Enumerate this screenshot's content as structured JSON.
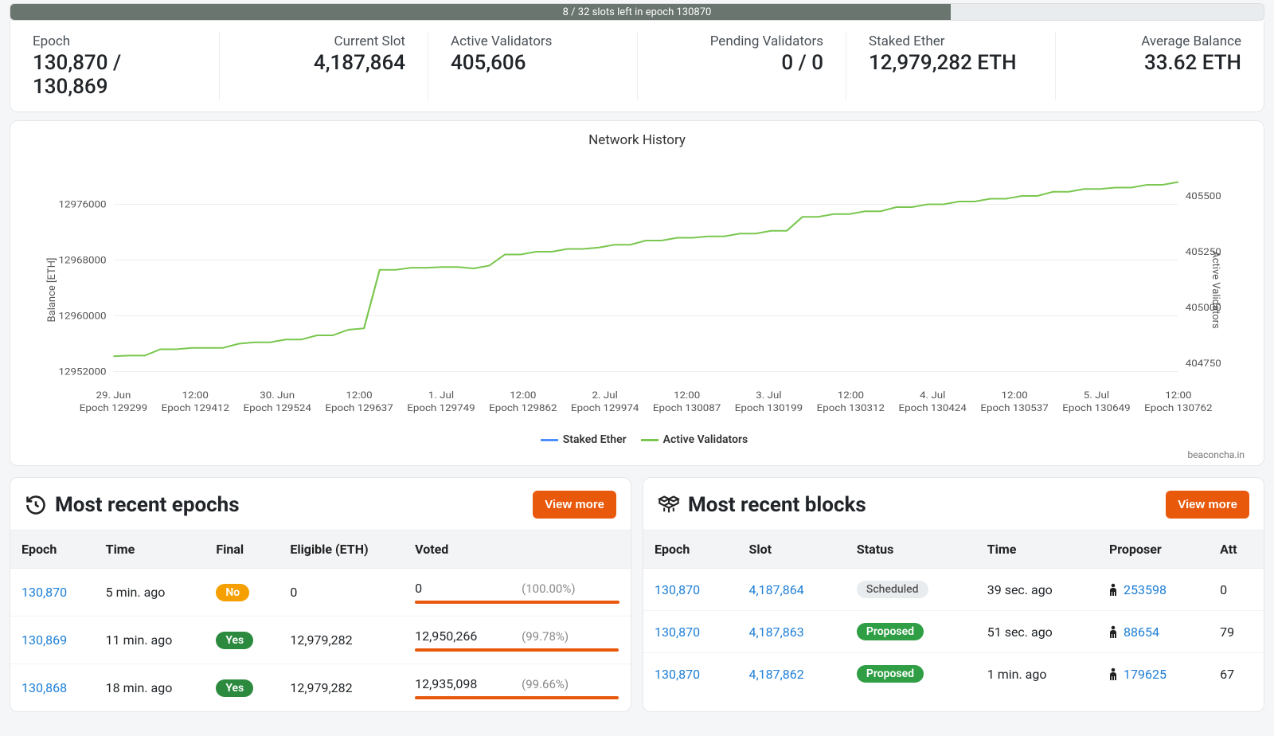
{
  "progress": {
    "text": "8 / 32 slots left in epoch 130870",
    "fill_pct": 75,
    "fill_color": "#6a756f",
    "track_color": "#e9ecef"
  },
  "stats": [
    {
      "label": "Epoch",
      "value": "130,870 / 130,869",
      "align": "left"
    },
    {
      "label": "Current Slot",
      "value": "4,187,864",
      "align": "right"
    },
    {
      "label": "Active Validators",
      "value": "405,606",
      "align": "left"
    },
    {
      "label": "Pending Validators",
      "value": "0 / 0",
      "align": "right"
    },
    {
      "label": "Staked Ether",
      "value": "12,979,282 ETH",
      "align": "left"
    },
    {
      "label": "Average Balance",
      "value": "33.62 ETH",
      "align": "right"
    }
  ],
  "chart": {
    "title": "Network History",
    "attribution": "beaconcha.in",
    "y_left_label": "Balance [ETH]",
    "y_right_label": "Active Validators",
    "y_left_ticks": [
      12952000,
      12960000,
      12968000,
      12976000
    ],
    "y_right_ticks": [
      404750,
      405000,
      405250,
      405500
    ],
    "y_left_min": 12950000,
    "y_left_max": 12982000,
    "y_right_min": 404650,
    "y_right_max": 405650,
    "x_ticks": [
      {
        "top": "29. Jun",
        "bot": "Epoch 129299"
      },
      {
        "top": "12:00",
        "bot": "Epoch 129412"
      },
      {
        "top": "30. Jun",
        "bot": "Epoch 129524"
      },
      {
        "top": "12:00",
        "bot": "Epoch 129637"
      },
      {
        "top": "1. Jul",
        "bot": "Epoch 129749"
      },
      {
        "top": "12:00",
        "bot": "Epoch 129862"
      },
      {
        "top": "2. Jul",
        "bot": "Epoch 129974"
      },
      {
        "top": "12:00",
        "bot": "Epoch 130087"
      },
      {
        "top": "3. Jul",
        "bot": "Epoch 130199"
      },
      {
        "top": "12:00",
        "bot": "Epoch 130312"
      },
      {
        "top": "4. Jul",
        "bot": "Epoch 130424"
      },
      {
        "top": "12:00",
        "bot": "Epoch 130537"
      },
      {
        "top": "5. Jul",
        "bot": "Epoch 130649"
      },
      {
        "top": "12:00",
        "bot": "Epoch 130762"
      }
    ],
    "legend": [
      {
        "label": "Staked Ether",
        "color": "#4c8dff"
      },
      {
        "label": "Active Validators",
        "color": "#7ac74f"
      }
    ],
    "series_color": "#7ac74f",
    "grid_color": "#eeeeee",
    "tick_font_size": 12,
    "series_left": [
      12954200,
      12954300,
      12954300,
      12955200,
      12955200,
      12955400,
      12955400,
      12955400,
      12956000,
      12956200,
      12956200,
      12956600,
      12956600,
      12957200,
      12957200,
      12958000,
      12958200,
      12966600,
      12966600,
      12966900,
      12966900,
      12967000,
      12967000,
      12966800,
      12967200,
      12968800,
      12968800,
      12969200,
      12969200,
      12969600,
      12969600,
      12969800,
      12970200,
      12970200,
      12970800,
      12970800,
      12971200,
      12971200,
      12971400,
      12971400,
      12971800,
      12971800,
      12972200,
      12972200,
      12974200,
      12974200,
      12974600,
      12974600,
      12975000,
      12975000,
      12975600,
      12975600,
      12976000,
      12976000,
      12976400,
      12976400,
      12976800,
      12976800,
      12977200,
      12977200,
      12977800,
      12977800,
      12978200,
      12978200,
      12978400,
      12978400,
      12978800,
      12978800,
      12979200
    ]
  },
  "epochs_card": {
    "title": "Most recent epochs",
    "button": "View more",
    "columns": [
      "Epoch",
      "Time",
      "Final",
      "Eligible (ETH)",
      "Voted"
    ],
    "rows": [
      {
        "epoch": "130,870",
        "time": "5 min. ago",
        "final": "No",
        "final_kind": "no",
        "eligible": "0",
        "voted": "0",
        "pct": "(100.00%)",
        "bar_pct": 100
      },
      {
        "epoch": "130,869",
        "time": "11 min. ago",
        "final": "Yes",
        "final_kind": "yes",
        "eligible": "12,979,282",
        "voted": "12,950,266",
        "pct": "(99.78%)",
        "bar_pct": 99.78
      },
      {
        "epoch": "130,868",
        "time": "18 min. ago",
        "final": "Yes",
        "final_kind": "yes",
        "eligible": "12,979,282",
        "voted": "12,935,098",
        "pct": "(99.66%)",
        "bar_pct": 99.66
      }
    ]
  },
  "blocks_card": {
    "title": "Most recent blocks",
    "button": "View more",
    "columns": [
      "Epoch",
      "Slot",
      "Status",
      "Time",
      "Proposer",
      "Att"
    ],
    "rows": [
      {
        "epoch": "130,870",
        "slot": "4,187,864",
        "status": "Scheduled",
        "status_kind": "scheduled",
        "time": "39 sec. ago",
        "proposer": "253598",
        "att": "0"
      },
      {
        "epoch": "130,870",
        "slot": "4,187,863",
        "status": "Proposed",
        "status_kind": "proposed",
        "time": "51 sec. ago",
        "proposer": "88654",
        "att": "79"
      },
      {
        "epoch": "130,870",
        "slot": "4,187,862",
        "status": "Proposed",
        "status_kind": "proposed",
        "time": "1 min. ago",
        "proposer": "179625",
        "att": "67"
      }
    ]
  },
  "colors": {
    "link": "#1c7ed6",
    "button": "#e8590c",
    "voted_bar": "#e8590c"
  }
}
